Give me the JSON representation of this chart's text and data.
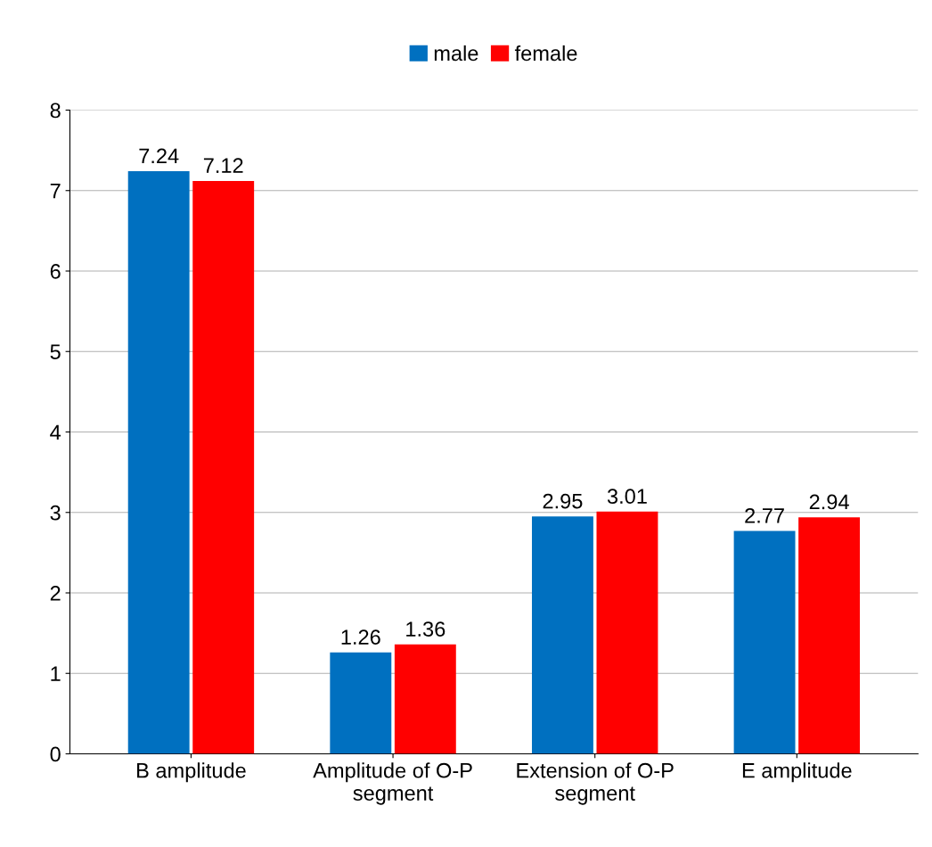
{
  "chart_data": {
    "type": "bar",
    "categories": [
      "B amplitude",
      "Amplitude of O-P\nsegment",
      "Extension of O-P\nsegment",
      "E amplitude"
    ],
    "series": [
      {
        "name": "male",
        "color": "#0070c0",
        "values": [
          7.24,
          1.26,
          2.95,
          2.77
        ]
      },
      {
        "name": "female",
        "color": "#ff0000",
        "values": [
          7.12,
          1.36,
          3.01,
          2.94
        ]
      }
    ],
    "ylim": [
      0,
      8
    ],
    "yticks": [
      0,
      1,
      2,
      3,
      4,
      5,
      6,
      7,
      8
    ],
    "grid": "y",
    "legend": "top",
    "data_labels": true
  }
}
